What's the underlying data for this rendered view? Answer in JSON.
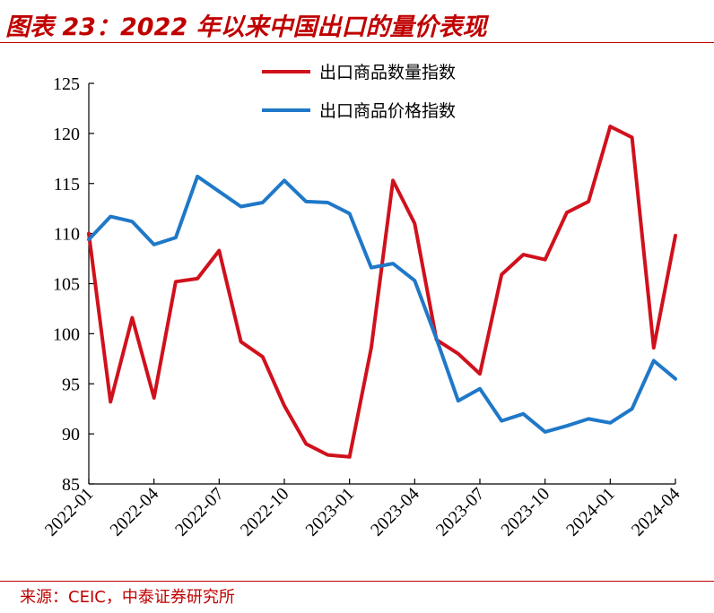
{
  "header": {
    "title": "图表 23：2022 年以来中国出口的量价表现"
  },
  "footer": {
    "source": "来源：CEIC，中泰证券研究所"
  },
  "colors": {
    "accent": "#c00000",
    "quantity": "#d0111d",
    "price": "#1f78c8"
  },
  "chart_data": {
    "type": "line",
    "title": "",
    "xlabel": "",
    "ylabel": "",
    "ylim": [
      85,
      125
    ],
    "yticks": [
      85,
      90,
      95,
      100,
      105,
      110,
      115,
      120,
      125
    ],
    "x": [
      "2022-01",
      "2022-02",
      "2022-03",
      "2022-04",
      "2022-05",
      "2022-06",
      "2022-07",
      "2022-08",
      "2022-09",
      "2022-10",
      "2022-11",
      "2022-12",
      "2023-01",
      "2023-02",
      "2023-03",
      "2023-04",
      "2023-05",
      "2023-06",
      "2023-07",
      "2023-08",
      "2023-09",
      "2023-10",
      "2023-11",
      "2023-12",
      "2024-01",
      "2024-02",
      "2024-03",
      "2024-04"
    ],
    "xtick_labels": [
      "2022-01",
      "2022-04",
      "2022-07",
      "2022-10",
      "2023-01",
      "2023-04",
      "2023-07",
      "2023-10",
      "2024-01",
      "2024-04"
    ],
    "legend_position": "top-center",
    "grid": false,
    "series": [
      {
        "name": "出口商品数量指数",
        "color": "#d0111d",
        "values": [
          110.0,
          93.2,
          101.6,
          93.6,
          105.2,
          105.5,
          108.3,
          99.2,
          97.7,
          92.8,
          89.0,
          87.9,
          87.7,
          98.6,
          115.3,
          111.0,
          99.4,
          98.0,
          96.0,
          105.9,
          107.9,
          107.4,
          112.1,
          113.2,
          120.7,
          119.6,
          98.6,
          109.8
        ]
      },
      {
        "name": "出口商品价格指数",
        "color": "#1f78c8",
        "values": [
          109.4,
          111.7,
          111.2,
          108.9,
          109.6,
          115.7,
          114.2,
          112.7,
          113.1,
          115.3,
          113.2,
          113.1,
          112.0,
          106.6,
          107.0,
          105.3,
          99.5,
          93.3,
          94.5,
          91.3,
          92.0,
          90.2,
          90.8,
          91.5,
          91.1,
          92.5,
          97.3,
          95.5
        ]
      }
    ]
  }
}
